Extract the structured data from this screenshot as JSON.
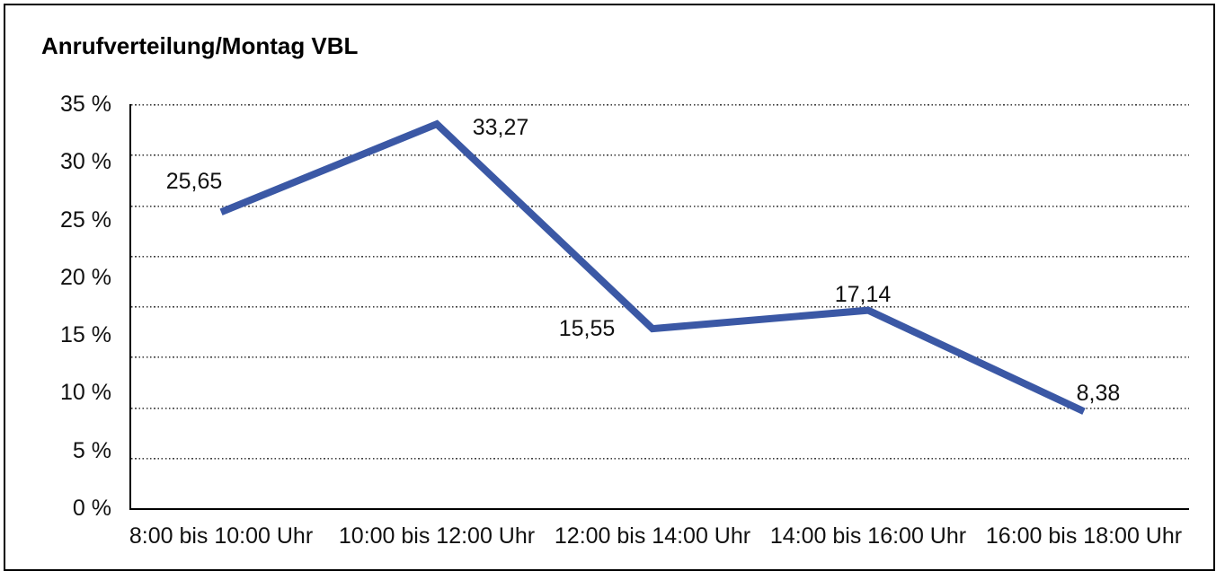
{
  "chart_data": {
    "type": "line",
    "title": "Anrufverteilung/Montag VBL",
    "categories": [
      "8:00 bis 10:00 Uhr",
      "10:00 bis 12:00 Uhr",
      "12:00 bis 14:00 Uhr",
      "14:00 bis 16:00 Uhr",
      "16:00 bis 18:00 Uhr"
    ],
    "values": [
      25.65,
      33.27,
      15.55,
      17.14,
      8.38
    ],
    "value_labels": [
      "25,65",
      "33,27",
      "15,55",
      "17,14",
      "8,38"
    ],
    "y_tick_labels": [
      "35 %",
      "30 %",
      "25 %",
      "20 %",
      "15 %",
      "10 %",
      "5 %",
      "0 %"
    ],
    "ylim": [
      0,
      35
    ],
    "xlabel": "",
    "ylabel": "",
    "grid": "horizontal-dotted",
    "gridline_intervals": 8,
    "legend": "none",
    "line_color": "#3b58a5",
    "axis_color": "#000000",
    "text_color": "#111111"
  }
}
